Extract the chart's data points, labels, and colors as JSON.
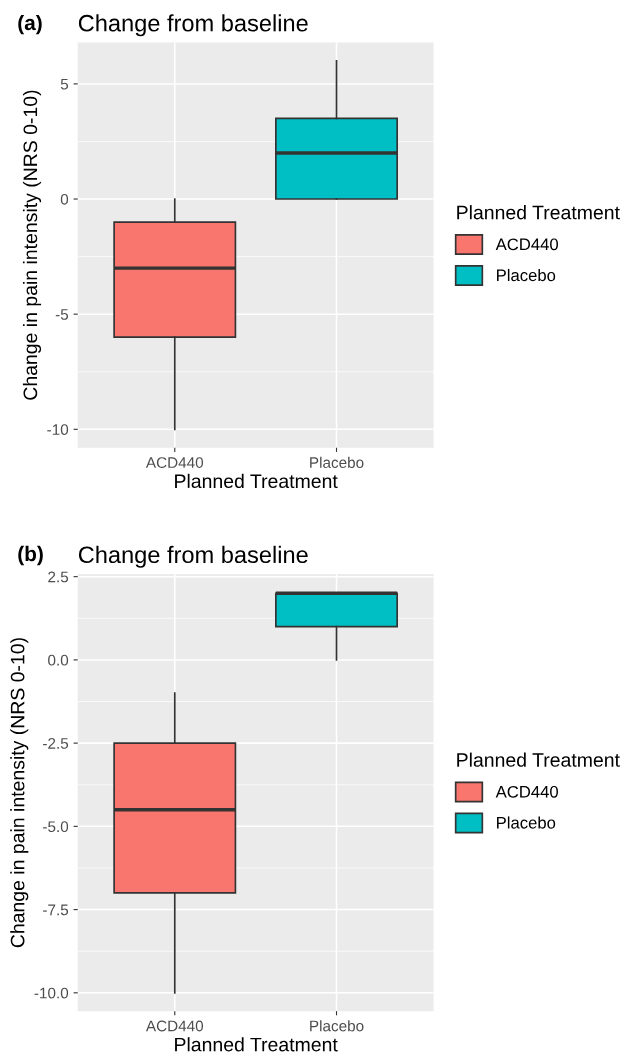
{
  "chart_data": [
    {
      "type": "box",
      "title": "Change from baseline",
      "annotations": [
        "(a)"
      ],
      "xlabel": "Planned Treatment",
      "ylabel": "Change in pain intensity (NRS 0-10)",
      "legend_title": "Planned Treatment",
      "legend": "right",
      "grid": true,
      "categories": [
        "ACD440",
        "Placebo"
      ],
      "ylim": [
        -10.8,
        6.8
      ],
      "yticks": [
        {
          "value": -10,
          "label": "-10"
        },
        {
          "value": -5,
          "label": "-5"
        },
        0,
        5
      ],
      "series": [
        {
          "name": "ACD440",
          "color": "#f8766d",
          "boxes": [
            {
              "low": -10,
              "q1": -6,
              "median": -3,
              "q3": -1,
              "high": 0
            },
            null
          ]
        },
        {
          "name": "Placebo",
          "color": "#00bfc4",
          "boxes": [
            null,
            {
              "low": 0,
              "q1": 0,
              "median": 2,
              "q3": 3.5,
              "high": 6
            }
          ]
        }
      ]
    },
    {
      "type": "box",
      "title": "Change from baseline",
      "annotations": [
        "(b)"
      ],
      "xlabel": "Planned Treatment",
      "ylabel": "Change in pain intensity (NRS 0-10)",
      "legend_title": "Planned Treatment",
      "legend": "right",
      "grid": true,
      "categories": [
        "ACD440",
        "Placebo"
      ],
      "ylim": [
        -10.55,
        2.58
      ],
      "yticks": [
        {
          "value": -10,
          "label": "-10.0"
        },
        {
          "value": -7.5,
          "label": "-7.5"
        },
        {
          "value": -5,
          "label": "-5.0"
        },
        {
          "value": -2.5,
          "label": "-2.5"
        },
        {
          "value": 0,
          "label": "0.0"
        },
        2.5
      ],
      "series": [
        {
          "name": "ACD440",
          "color": "#f8766d",
          "boxes": [
            {
              "low": -10,
              "q1": -7,
              "median": -4.5,
              "q3": -2.5,
              "high": -1
            },
            null
          ]
        },
        {
          "name": "Placebo",
          "color": "#00bfc4",
          "boxes": [
            null,
            {
              "low": 0,
              "q1": 1,
              "median": 2,
              "q3": 2,
              "high": 2
            }
          ]
        }
      ]
    }
  ]
}
